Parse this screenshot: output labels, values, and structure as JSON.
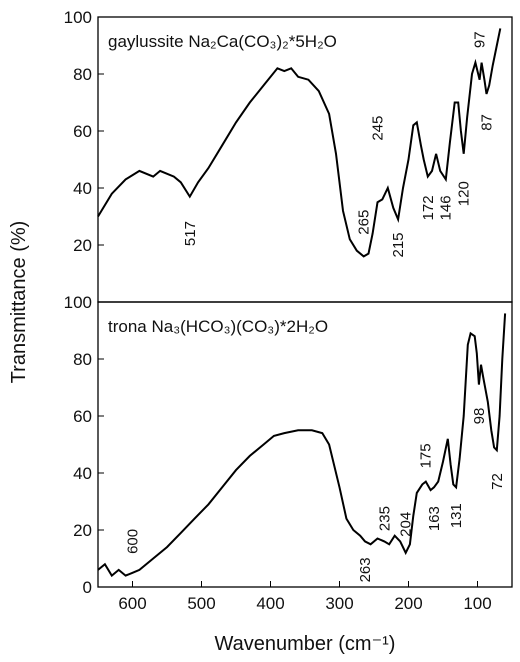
{
  "chart_data": [
    {
      "type": "line",
      "title": "gaylussite Na₂Ca(CO₃)₂*5H₂O",
      "y_label": "Transmittance (%)",
      "x": [
        650,
        630,
        610,
        590,
        570,
        560,
        540,
        530,
        517,
        505,
        490,
        470,
        450,
        430,
        410,
        390,
        380,
        370,
        360,
        345,
        330,
        315,
        305,
        295,
        285,
        275,
        265,
        258,
        252,
        245,
        238,
        230,
        222,
        215,
        208,
        200,
        193,
        188,
        182,
        178,
        172,
        166,
        160,
        154,
        146,
        140,
        133,
        128,
        124,
        120,
        115,
        108,
        103,
        99,
        97,
        94,
        90,
        87,
        83,
        78,
        72,
        67
      ],
      "series": [
        {
          "color": "#000000",
          "values": [
            30,
            38,
            43,
            46,
            44,
            46,
            44,
            42,
            37,
            42,
            47,
            55,
            63,
            70,
            76,
            82,
            81,
            82,
            79,
            78,
            74,
            66,
            52,
            32,
            22,
            18,
            16,
            17,
            24,
            35,
            36,
            40,
            33,
            29,
            40,
            50,
            62,
            63,
            55,
            50,
            44,
            46,
            52,
            46,
            43,
            56,
            70,
            70,
            60,
            52,
            65,
            80,
            84,
            80,
            78,
            84,
            78,
            73,
            76,
            83,
            90,
            96
          ]
        }
      ],
      "xlim": [
        650,
        50
      ],
      "ylim": [
        0,
        100
      ],
      "yticks": [
        20,
        40,
        60,
        80,
        100
      ],
      "annotations": [
        {
          "label": "517",
          "x": 517,
          "y": 24
        },
        {
          "label": "265",
          "x": 265,
          "y": 28
        },
        {
          "label": "245",
          "x": 245,
          "y": 61
        },
        {
          "label": "215",
          "x": 215,
          "y": 20
        },
        {
          "label": "172",
          "x": 172,
          "y": 33
        },
        {
          "label": "146",
          "x": 146,
          "y": 33
        },
        {
          "label": "120",
          "x": 120,
          "y": 38
        },
        {
          "label": "97",
          "x": 97,
          "y": 92
        },
        {
          "label": "87",
          "x": 87,
          "y": 63
        }
      ]
    },
    {
      "type": "line",
      "title": "trona Na₃(HCO₃)(CO₃)*2H₂O",
      "x_label": "Wavenumber (cm⁻¹)",
      "x": [
        650,
        640,
        630,
        620,
        610,
        600,
        590,
        570,
        550,
        530,
        510,
        490,
        470,
        450,
        430,
        410,
        395,
        380,
        360,
        340,
        325,
        315,
        300,
        290,
        280,
        270,
        263,
        255,
        245,
        235,
        228,
        220,
        212,
        204,
        198,
        193,
        188,
        180,
        175,
        168,
        163,
        157,
        150,
        143,
        139,
        135,
        131,
        126,
        120,
        114,
        110,
        104,
        101,
        98,
        95,
        92,
        85,
        80,
        76,
        72,
        68,
        64,
        60
      ],
      "series": [
        {
          "color": "#000000",
          "values": [
            6,
            8,
            4,
            6,
            4,
            5,
            6,
            10,
            14,
            19,
            24,
            29,
            35,
            41,
            46,
            50,
            53,
            54,
            55,
            55,
            54,
            50,
            35,
            24,
            20,
            18,
            16,
            15,
            17,
            16,
            15,
            18,
            16,
            12,
            15,
            25,
            33,
            36,
            37,
            34,
            35,
            37,
            44,
            52,
            43,
            36,
            35,
            45,
            60,
            85,
            89,
            88,
            82,
            71,
            78,
            74,
            65,
            55,
            49,
            48,
            60,
            80,
            96
          ]
        }
      ],
      "xlim": [
        650,
        50
      ],
      "ylim": [
        0,
        100
      ],
      "yticks": [
        0,
        20,
        40,
        60,
        80,
        100
      ],
      "xticks": [
        600,
        500,
        400,
        300,
        200,
        100
      ],
      "annotations": [
        {
          "label": "600",
          "x": 600,
          "y": 16
        },
        {
          "label": "263",
          "x": 263,
          "y": 6
        },
        {
          "label": "235",
          "x": 235,
          "y": 24
        },
        {
          "label": "204",
          "x": 204,
          "y": 22
        },
        {
          "label": "175",
          "x": 175,
          "y": 46
        },
        {
          "label": "163",
          "x": 163,
          "y": 24
        },
        {
          "label": "131",
          "x": 131,
          "y": 25
        },
        {
          "label": "98",
          "x": 98,
          "y": 60
        },
        {
          "label": "72",
          "x": 72,
          "y": 37
        }
      ]
    }
  ]
}
